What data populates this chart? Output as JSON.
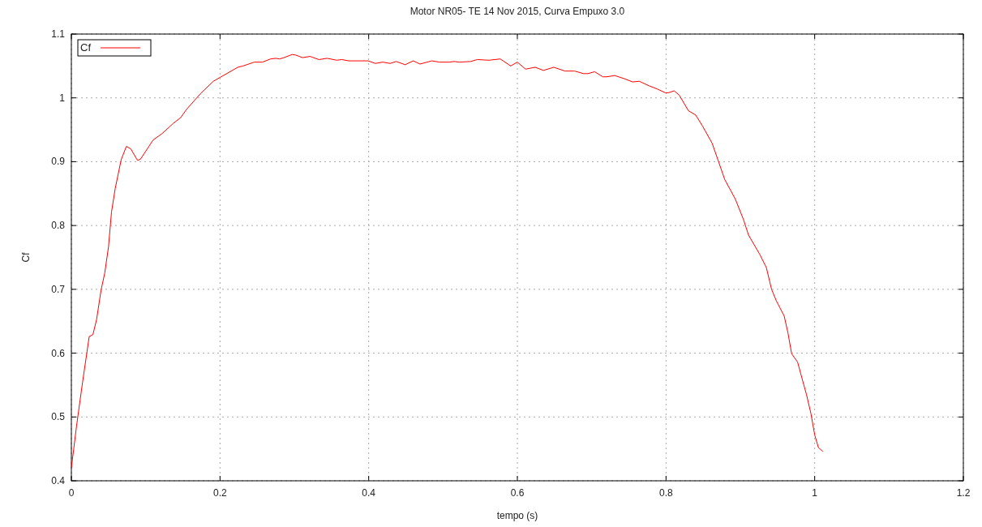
{
  "chart_data": {
    "type": "line",
    "title": "Motor NR05-   TE 14 Nov 2015, Curva Empuxo 3.0",
    "xlabel": "tempo (s)",
    "ylabel": "Cf",
    "xlim": [
      0,
      1.2
    ],
    "xticks": [
      0,
      0.2,
      0.4,
      0.6,
      0.8,
      1,
      1.2
    ],
    "ylim": [
      0.4,
      1.1
    ],
    "yticks": [
      0.4,
      0.5,
      0.6,
      0.7,
      0.8,
      0.9,
      1,
      1.1
    ],
    "grid": true,
    "legend": "top left",
    "series": [
      {
        "name": "Cf",
        "color": "#ff0000",
        "x": [
          0,
          0.007,
          0.015,
          0.024,
          0.029,
          0.034,
          0.04,
          0.045,
          0.05,
          0.054,
          0.059,
          0.067,
          0.074,
          0.08,
          0.089,
          0.093,
          0.11,
          0.122,
          0.137,
          0.147,
          0.155,
          0.174,
          0.191,
          0.2,
          0.224,
          0.231,
          0.246,
          0.257,
          0.268,
          0.275,
          0.28,
          0.286,
          0.297,
          0.302,
          0.311,
          0.321,
          0.333,
          0.344,
          0.357,
          0.364,
          0.373,
          0.399,
          0.409,
          0.419,
          0.429,
          0.437,
          0.449,
          0.46,
          0.469,
          0.485,
          0.495,
          0.508,
          0.515,
          0.522,
          0.537,
          0.546,
          0.562,
          0.577,
          0.591,
          0.6,
          0.611,
          0.624,
          0.635,
          0.649,
          0.664,
          0.677,
          0.689,
          0.695,
          0.704,
          0.715,
          0.72,
          0.731,
          0.744,
          0.755,
          0.764,
          0.777,
          0.788,
          0.799,
          0.803,
          0.811,
          0.818,
          0.83,
          0.84,
          0.849,
          0.862,
          0.871,
          0.879,
          0.893,
          0.904,
          0.911,
          0.926,
          0.935,
          0.942,
          0.948,
          0.959,
          0.964,
          0.969,
          0.977,
          0.984,
          0.989,
          0.995,
          1.0,
          1.005,
          1.011
        ],
        "values": [
          0.42,
          0.486,
          0.554,
          0.626,
          0.629,
          0.653,
          0.699,
          0.726,
          0.767,
          0.821,
          0.858,
          0.903,
          0.924,
          0.92,
          0.902,
          0.904,
          0.934,
          0.944,
          0.96,
          0.969,
          0.982,
          1.007,
          1.026,
          1.032,
          1.048,
          1.05,
          1.056,
          1.056,
          1.061,
          1.062,
          1.061,
          1.063,
          1.068,
          1.067,
          1.063,
          1.065,
          1.06,
          1.062,
          1.059,
          1.06,
          1.058,
          1.058,
          1.054,
          1.056,
          1.054,
          1.057,
          1.052,
          1.058,
          1.053,
          1.058,
          1.056,
          1.056,
          1.057,
          1.056,
          1.057,
          1.06,
          1.059,
          1.061,
          1.05,
          1.056,
          1.045,
          1.048,
          1.043,
          1.048,
          1.042,
          1.042,
          1.038,
          1.038,
          1.041,
          1.033,
          1.033,
          1.035,
          1.03,
          1.025,
          1.026,
          1.019,
          1.014,
          1.008,
          1.008,
          1.011,
          1.004,
          0.98,
          0.973,
          0.956,
          0.929,
          0.899,
          0.872,
          0.842,
          0.81,
          0.785,
          0.755,
          0.734,
          0.7,
          0.683,
          0.658,
          0.632,
          0.599,
          0.586,
          0.556,
          0.535,
          0.505,
          0.472,
          0.452,
          0.446
        ]
      }
    ]
  }
}
